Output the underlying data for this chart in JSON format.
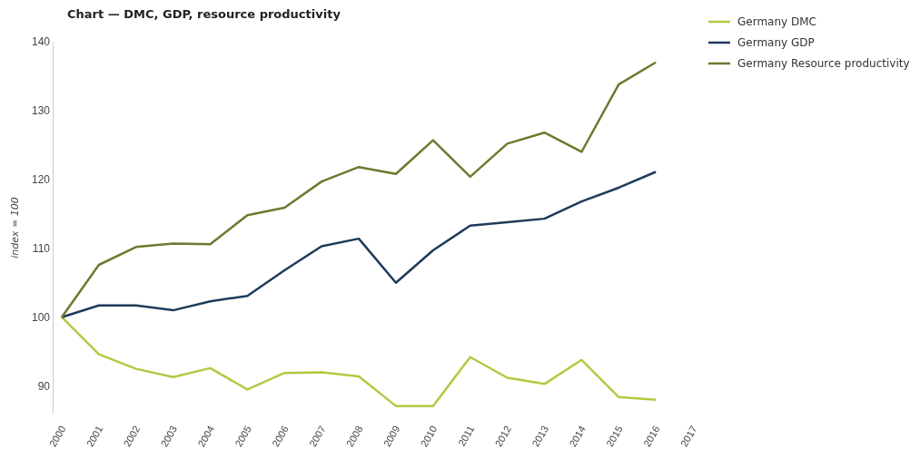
{
  "chart_data": {
    "type": "line",
    "title": "Chart — DMC, GDP, resource productivity",
    "ylabel": "index = 100",
    "x": [
      2000,
      2001,
      2002,
      2003,
      2004,
      2005,
      2006,
      2007,
      2008,
      2009,
      2010,
      2011,
      2012,
      2013,
      2014,
      2015,
      2016
    ],
    "xlim": [
      2000,
      2017
    ],
    "xticks": [
      2000,
      2001,
      2002,
      2003,
      2004,
      2005,
      2006,
      2007,
      2008,
      2009,
      2010,
      2011,
      2012,
      2013,
      2014,
      2015,
      2016,
      2017
    ],
    "ylim": [
      86,
      140
    ],
    "yticks": [
      90,
      100,
      110,
      120,
      130,
      140
    ],
    "grid": false,
    "legend": "top right",
    "marker": "none",
    "line_style": "solid",
    "series": [
      {
        "name": "Germany DMC",
        "color": "#b5c842",
        "values": [
          100,
          94.6,
          92.5,
          91.3,
          92.6,
          89.5,
          91.9,
          92.0,
          91.4,
          87.1,
          87.1,
          94.2,
          91.2,
          90.3,
          93.8,
          88.4,
          88.0
        ]
      },
      {
        "name": "Germany GDP",
        "color": "#1f3a5a",
        "values": [
          100,
          101.7,
          101.7,
          101.0,
          102.3,
          103.1,
          106.8,
          110.3,
          111.4,
          105.0,
          109.7,
          113.3,
          113.8,
          114.3,
          116.8,
          118.8,
          121.1
        ]
      },
      {
        "name": "Germany Resource productivity",
        "color": "#6b7a2f",
        "values": [
          100,
          107.6,
          110.2,
          110.7,
          110.6,
          114.8,
          115.9,
          119.7,
          121.8,
          120.8,
          125.7,
          120.4,
          125.2,
          126.8,
          124.0,
          133.8,
          137.0
        ]
      }
    ]
  }
}
